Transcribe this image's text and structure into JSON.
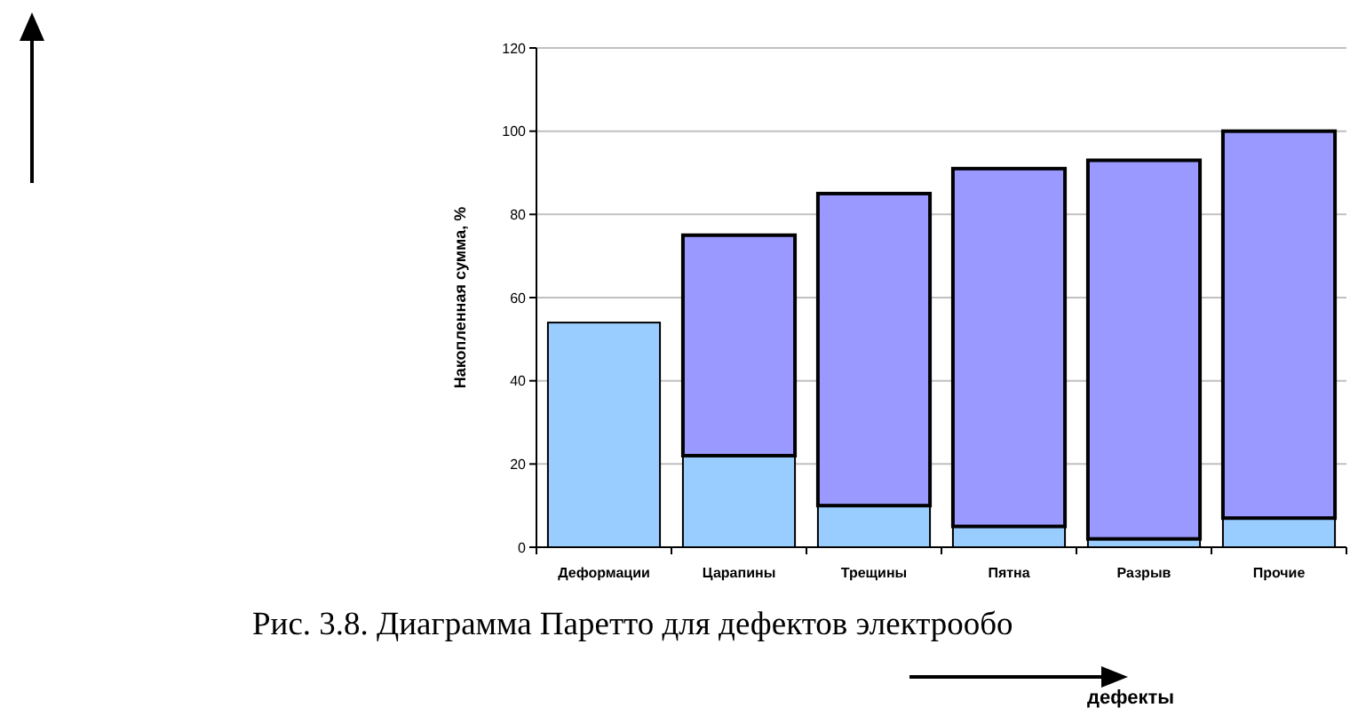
{
  "chart_data": {
    "type": "bar",
    "stacked": true,
    "categories": [
      "Деформации",
      "Царапины",
      "Трещины",
      "Пятна",
      "Разрыв",
      "Прочие"
    ],
    "series": [
      {
        "color": "#99ccff",
        "values": [
          54,
          22,
          10,
          5,
          2,
          7
        ]
      },
      {
        "color": "#9999ff",
        "values": [
          0,
          53,
          75,
          86,
          91,
          93
        ]
      }
    ],
    "ylim": [
      0,
      120
    ],
    "yticks": [
      0,
      20,
      40,
      60,
      80,
      100,
      120
    ],
    "grid": "y",
    "ylabel": "Накопленная сумма, %",
    "annotations": [
      "Рис. 3.8. Диаграмма Паретто для дефектов электрообо",
      "дефекты"
    ]
  }
}
